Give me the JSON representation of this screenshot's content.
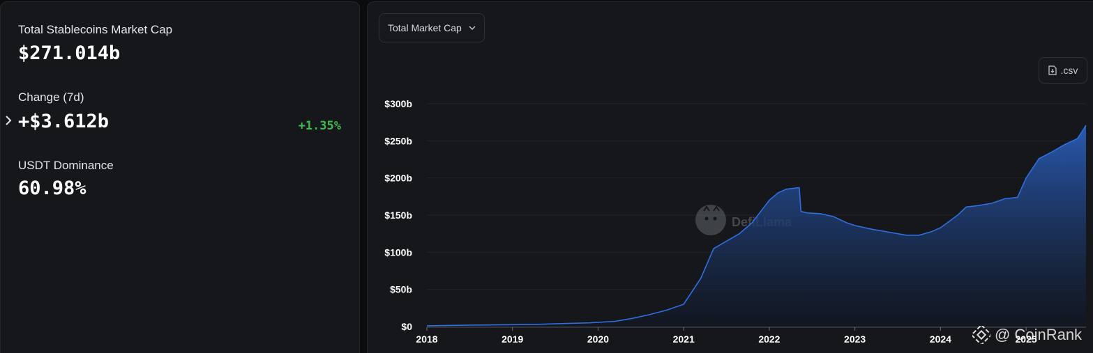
{
  "stats": {
    "market_cap_label": "Total Stablecoins Market Cap",
    "market_cap_value": "$271.014b",
    "change_label": "Change (7d)",
    "change_value": "+$3.612b",
    "change_pct": "+1.35%",
    "dominance_label": "USDT Dominance",
    "dominance_value": "60.98%"
  },
  "controls": {
    "dropdown_label": "Total Market Cap",
    "csv_label": ".csv"
  },
  "colors": {
    "accent_line": "#2f6fe0",
    "positive": "#3fb950",
    "panel_bg": "#16171a"
  },
  "watermarks": {
    "defillama": "DefiLlama",
    "coinrank": "@ CoinRank"
  },
  "chart_data": {
    "type": "area",
    "ylim": [
      0,
      300
    ],
    "y_ticks": [
      "$0",
      "$50b",
      "$100b",
      "$150b",
      "$200b",
      "$250b",
      "$300b"
    ],
    "x_ticks": [
      "2018",
      "2019",
      "2020",
      "2021",
      "2022",
      "2023",
      "2024",
      "2025"
    ],
    "series": [
      {
        "x": [
          2018.0,
          2018.5,
          2019.0,
          2019.3,
          2019.6,
          2019.9,
          2020.2,
          2020.4,
          2020.6,
          2020.8,
          2021.0,
          2021.2,
          2021.35,
          2021.5,
          2021.65,
          2021.8,
          2021.9,
          2022.0,
          2022.1,
          2022.2,
          2022.35,
          2022.37,
          2022.45,
          2022.6,
          2022.75,
          2022.9,
          2023.0,
          2023.2,
          2023.4,
          2023.6,
          2023.75,
          2023.9,
          2024.0,
          2024.2,
          2024.3,
          2024.45,
          2024.6,
          2024.75,
          2024.9,
          2025.0,
          2025.15,
          2025.3,
          2025.45,
          2025.6,
          2025.65,
          2025.7
        ],
        "values": [
          1,
          2,
          2.5,
          3,
          4,
          5,
          7,
          11,
          16,
          22,
          30,
          65,
          105,
          115,
          125,
          140,
          155,
          170,
          180,
          185,
          187,
          155,
          153,
          152,
          148,
          140,
          136,
          131,
          127,
          123,
          123,
          128,
          133,
          150,
          161,
          163,
          166,
          172,
          174,
          200,
          226,
          235,
          245,
          253,
          262,
          271
        ]
      }
    ]
  }
}
